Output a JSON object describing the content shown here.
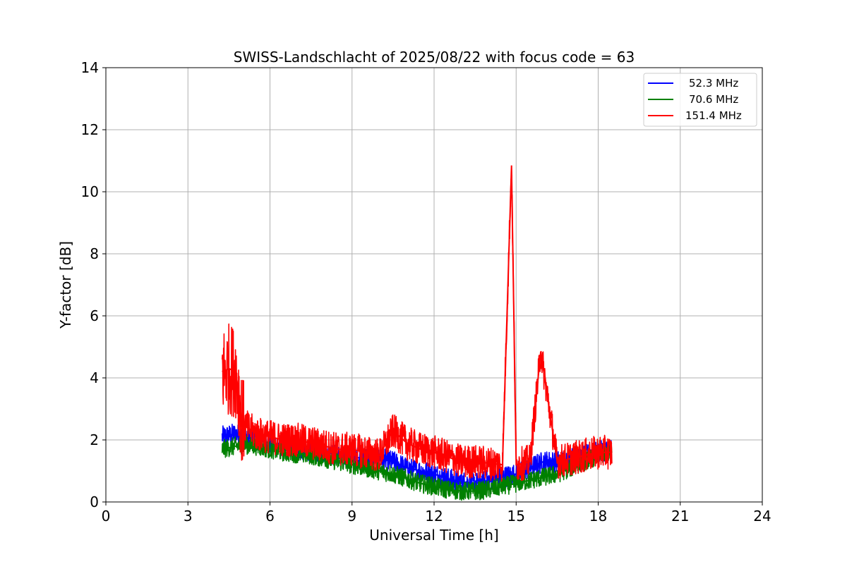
{
  "chart_data": {
    "type": "line",
    "title": "SWISS-Landschlacht of 2025/08/22 with focus code = 63",
    "xlabel": "Universal Time [h]",
    "ylabel": "Y-factor [dB]",
    "xlim": [
      0,
      24
    ],
    "ylim": [
      0,
      14
    ],
    "xticks": [
      "0",
      "3",
      "6",
      "9",
      "12",
      "15",
      "18",
      "21",
      "24"
    ],
    "yticks": [
      "0",
      "2",
      "4",
      "6",
      "8",
      "10",
      "12",
      "14"
    ],
    "grid": true,
    "legend_position": "top-right",
    "series": [
      {
        "name": "52.3 MHz",
        "color": "#0000ff",
        "x": [
          4.25,
          4.75,
          5.0,
          5.5,
          6.0,
          6.5,
          7.0,
          7.5,
          8.0,
          8.5,
          9.0,
          9.5,
          10.0,
          10.5,
          11.0,
          11.5,
          12.0,
          12.5,
          13.0,
          13.5,
          14.0,
          14.5,
          15.0,
          15.5,
          16.0,
          16.5,
          17.0,
          17.5,
          18.0,
          18.5
        ],
        "y": [
          2.1,
          2.2,
          2.1,
          2.0,
          1.9,
          1.8,
          1.7,
          1.65,
          1.6,
          1.5,
          1.45,
          1.4,
          1.4,
          1.3,
          1.1,
          1.0,
          0.9,
          0.75,
          0.65,
          0.6,
          0.7,
          0.8,
          0.9,
          1.1,
          1.3,
          1.3,
          1.4,
          1.5,
          1.6,
          1.7
        ]
      },
      {
        "name": "70.6 MHz",
        "color": "#008000",
        "x": [
          4.25,
          4.75,
          5.0,
          5.5,
          6.0,
          6.5,
          7.0,
          7.5,
          8.0,
          8.5,
          9.0,
          9.5,
          10.0,
          10.5,
          11.0,
          11.5,
          12.0,
          12.5,
          13.0,
          13.5,
          14.0,
          14.5,
          15.0,
          15.5,
          16.0,
          16.5,
          17.0,
          17.5,
          18.0,
          18.5
        ],
        "y": [
          1.7,
          1.8,
          1.85,
          1.8,
          1.7,
          1.6,
          1.55,
          1.5,
          1.4,
          1.3,
          1.2,
          1.1,
          1.0,
          0.9,
          0.75,
          0.6,
          0.5,
          0.4,
          0.35,
          0.35,
          0.4,
          0.5,
          0.6,
          0.7,
          0.8,
          0.9,
          1.1,
          1.3,
          1.5,
          1.6
        ]
      },
      {
        "name": "151.4 MHz",
        "color": "#ff0000",
        "x": [
          4.25,
          4.5,
          4.75,
          5.0,
          5.5,
          6.0,
          6.5,
          7.0,
          7.5,
          8.0,
          8.5,
          9.0,
          9.5,
          10.0,
          10.5,
          11.0,
          11.5,
          12.0,
          12.5,
          13.0,
          13.5,
          14.0,
          14.5,
          14.83,
          15.0,
          15.5,
          15.9,
          16.5,
          17.0,
          17.5,
          18.0,
          18.5
        ],
        "y": [
          4.2,
          4.3,
          4.2,
          2.5,
          2.2,
          2.1,
          2.0,
          2.0,
          1.9,
          1.8,
          1.7,
          1.7,
          1.6,
          1.5,
          2.3,
          1.9,
          1.7,
          1.6,
          1.45,
          1.3,
          1.3,
          1.25,
          1.2,
          10.85,
          1.2,
          1.3,
          4.85,
          1.3,
          1.4,
          1.5,
          1.6,
          1.6
        ]
      }
    ]
  }
}
